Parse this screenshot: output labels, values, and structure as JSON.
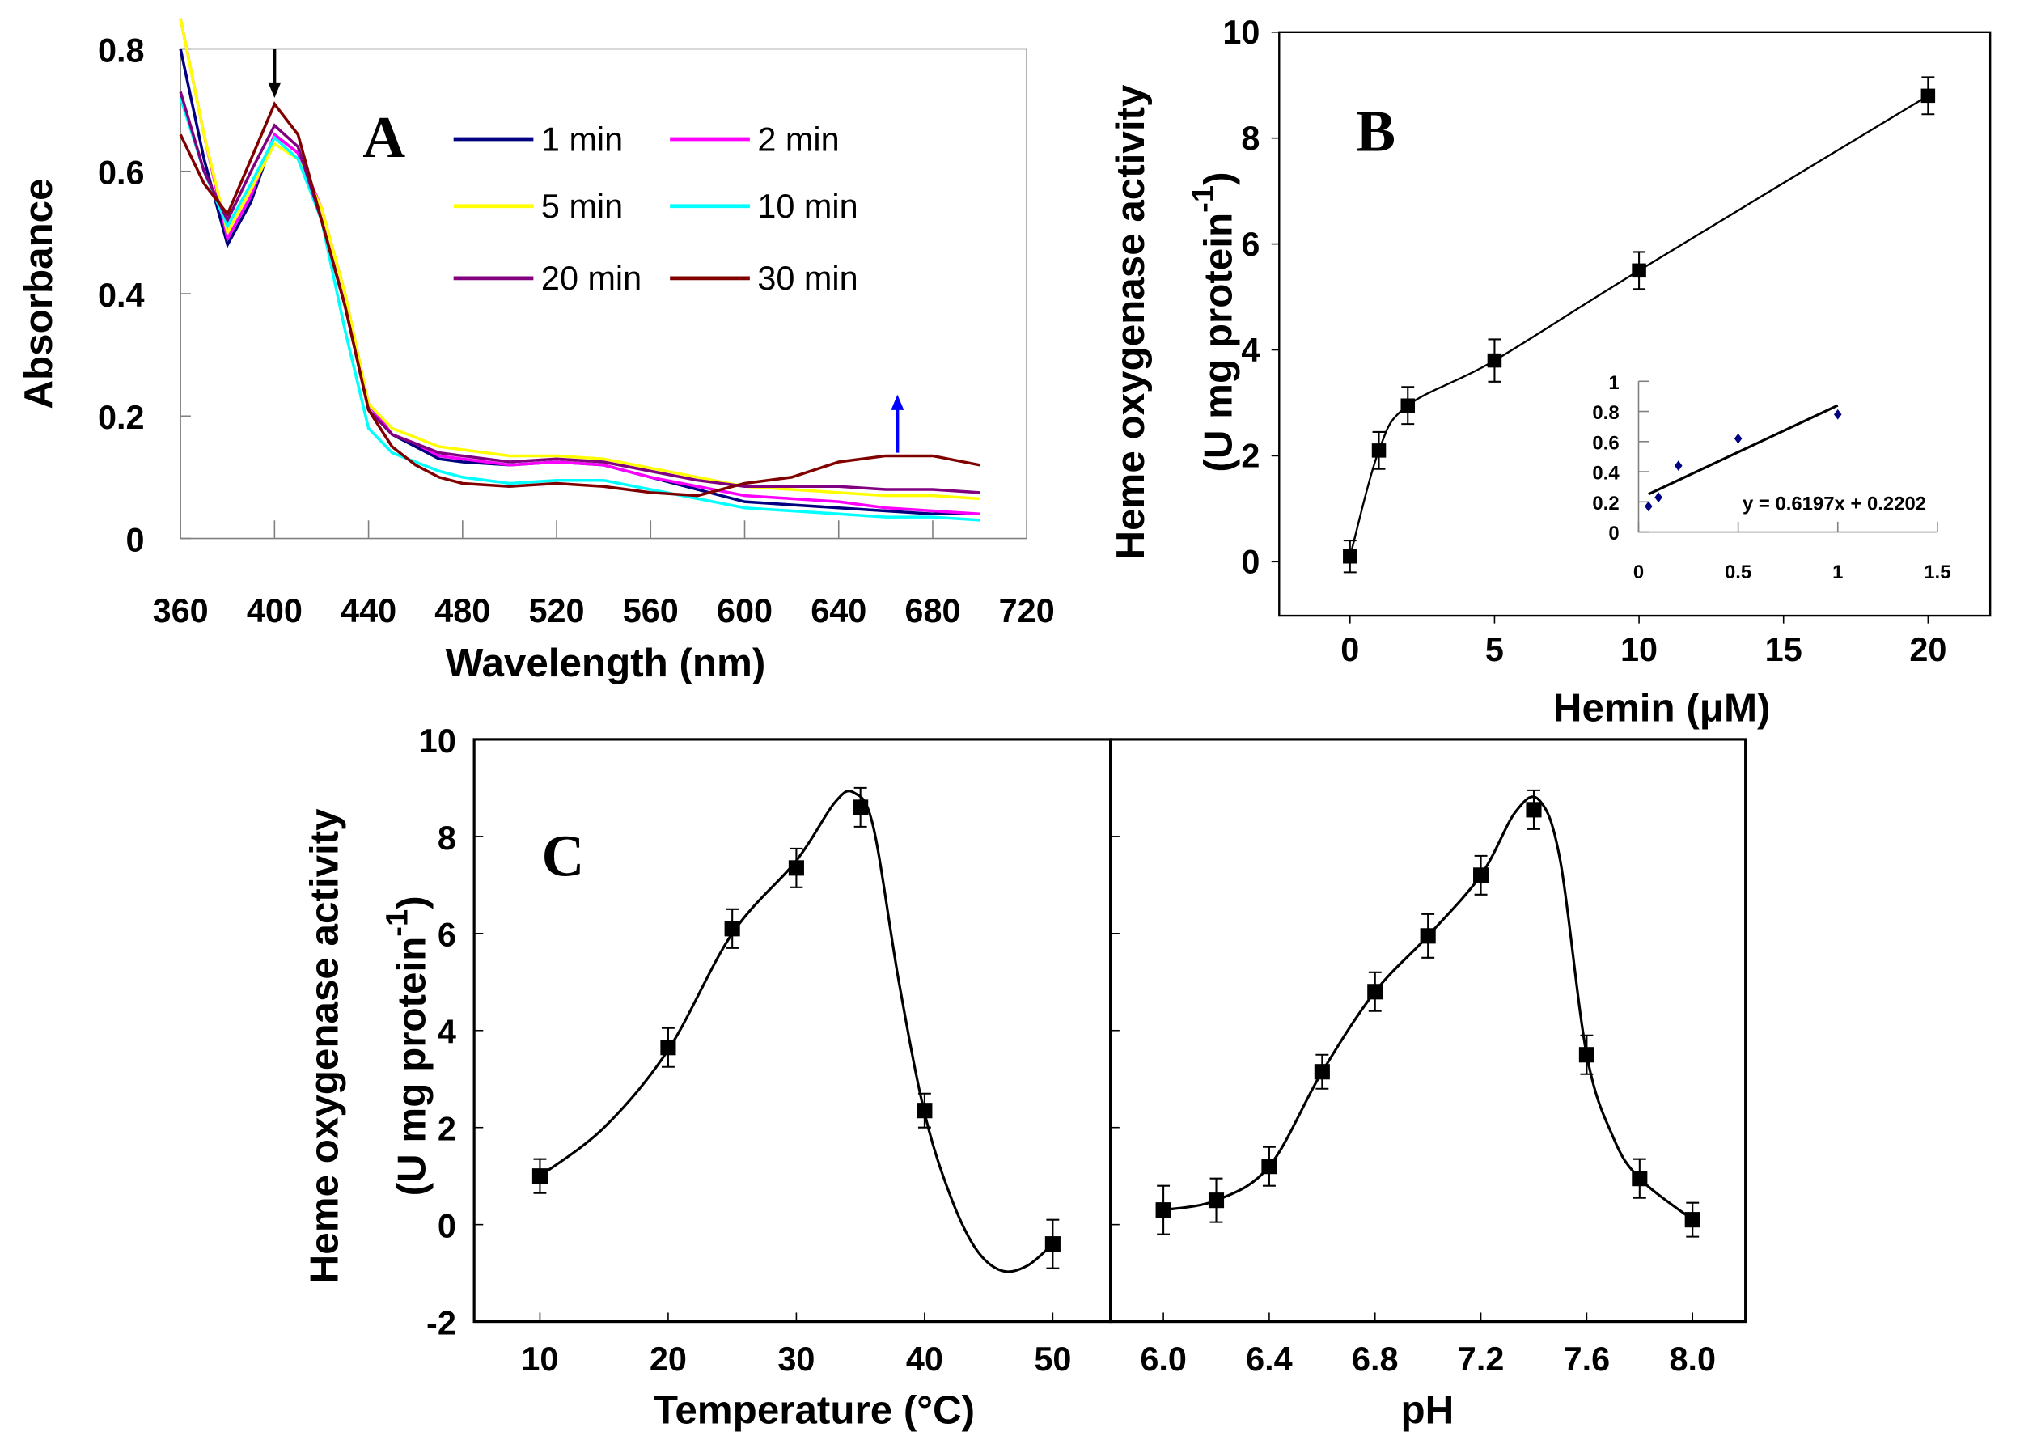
{
  "chart_data": [
    {
      "panel": "A",
      "type": "line",
      "letter": "A",
      "xlabel": "Wavelength (nm)",
      "ylabel": "Absorbance",
      "xlim": [
        360,
        720
      ],
      "ylim": [
        0,
        0.8
      ],
      "xticks": [
        "360",
        "400",
        "440",
        "480",
        "520",
        "560",
        "600",
        "640",
        "680",
        "720"
      ],
      "yticks": [
        "0",
        "0.2",
        "0.4",
        "0.6",
        "0.8"
      ],
      "x": [
        360,
        370,
        380,
        390,
        400,
        410,
        420,
        430,
        440,
        450,
        460,
        470,
        480,
        500,
        520,
        540,
        560,
        580,
        600,
        620,
        640,
        660,
        680,
        700
      ],
      "series": [
        {
          "name": "1 min",
          "color": "#000080",
          "values": [
            0.8,
            0.62,
            0.48,
            0.55,
            0.66,
            0.63,
            0.52,
            0.38,
            0.22,
            0.17,
            0.15,
            0.13,
            0.125,
            0.12,
            0.125,
            0.12,
            0.1,
            0.08,
            0.06,
            0.055,
            0.05,
            0.045,
            0.04,
            0.04
          ]
        },
        {
          "name": "2 min",
          "color": "#ff00ff",
          "values": [
            0.85,
            0.66,
            0.49,
            0.56,
            0.66,
            0.63,
            0.54,
            0.4,
            0.22,
            0.17,
            0.155,
            0.135,
            0.13,
            0.12,
            0.125,
            0.12,
            0.1,
            0.085,
            0.07,
            0.065,
            0.06,
            0.05,
            0.045,
            0.04
          ]
        },
        {
          "name": "5 min",
          "color": "#ffff00",
          "values": [
            0.85,
            0.66,
            0.5,
            0.57,
            0.645,
            0.62,
            0.54,
            0.4,
            0.22,
            0.18,
            0.165,
            0.15,
            0.145,
            0.135,
            0.135,
            0.13,
            0.115,
            0.1,
            0.085,
            0.08,
            0.075,
            0.07,
            0.07,
            0.065
          ]
        },
        {
          "name": "10 min",
          "color": "#00ffff",
          "values": [
            0.72,
            0.6,
            0.51,
            0.58,
            0.655,
            0.62,
            0.52,
            0.34,
            0.18,
            0.14,
            0.125,
            0.11,
            0.1,
            0.09,
            0.095,
            0.095,
            0.08,
            0.065,
            0.05,
            0.045,
            0.04,
            0.035,
            0.035,
            0.03
          ]
        },
        {
          "name": "20 min",
          "color": "#800080",
          "values": [
            0.73,
            0.6,
            0.52,
            0.6,
            0.675,
            0.64,
            0.52,
            0.38,
            0.21,
            0.17,
            0.155,
            0.14,
            0.135,
            0.125,
            0.13,
            0.125,
            0.11,
            0.095,
            0.085,
            0.085,
            0.085,
            0.08,
            0.08,
            0.075
          ]
        },
        {
          "name": "30 min",
          "color": "#800000",
          "values": [
            0.66,
            0.58,
            0.53,
            0.62,
            0.71,
            0.66,
            0.52,
            0.38,
            0.21,
            0.15,
            0.12,
            0.1,
            0.09,
            0.085,
            0.09,
            0.085,
            0.075,
            0.07,
            0.09,
            0.1,
            0.125,
            0.135,
            0.135,
            0.12
          ]
        }
      ],
      "annotations": [
        {
          "type": "arrow-down",
          "color": "#000000",
          "x": 400,
          "from": 0.8,
          "to": 0.72
        },
        {
          "type": "arrow-up",
          "color": "#0000ff",
          "x": 665,
          "from": 0.14,
          "to": 0.235
        }
      ]
    },
    {
      "panel": "B",
      "type": "line",
      "letter": "B",
      "xlabel": "Hemin (μM)",
      "ylabel": [
        "Heme oxygenase activity",
        "(U mg protein",
        "-1",
        ")"
      ],
      "xlim": [
        -2.45,
        22.15
      ],
      "ylim": [
        -1.02,
        10
      ],
      "xticks": [
        "0",
        "5",
        "10",
        "15",
        "20"
      ],
      "yticks": [
        "0",
        "2",
        "4",
        "6",
        "8",
        "10"
      ],
      "points": [
        {
          "x": 0,
          "y": 0.1,
          "err": 0.3
        },
        {
          "x": 1,
          "y": 2.1,
          "err": 0.35
        },
        {
          "x": 2,
          "y": 2.95,
          "err": 0.35
        },
        {
          "x": 5,
          "y": 3.8,
          "err": 0.4
        },
        {
          "x": 10,
          "y": 5.5,
          "err": 0.35
        },
        {
          "x": 20,
          "y": 8.8,
          "err": 0.35
        }
      ],
      "inset": {
        "type": "scatter",
        "xlim": [
          0,
          1.5
        ],
        "ylim": [
          0,
          1
        ],
        "xticks": [
          "0",
          "0.5",
          "1",
          "1.5"
        ],
        "yticks": [
          "0",
          "0.2",
          "0.4",
          "0.6",
          "0.8",
          "1"
        ],
        "points": [
          {
            "x": 0.05,
            "y": 0.17
          },
          {
            "x": 0.1,
            "y": 0.23
          },
          {
            "x": 0.2,
            "y": 0.44
          },
          {
            "x": 0.5,
            "y": 0.62
          },
          {
            "x": 1,
            "y": 0.78
          }
        ],
        "point_color": "#000080",
        "fit": {
          "slope": 0.6197,
          "intercept": 0.2202,
          "range": [
            0.05,
            1
          ]
        },
        "equation": "y = 0.6197x + 0.2202"
      }
    },
    {
      "panel": "C-temperature",
      "type": "line",
      "letter": "C",
      "xlabel": "Temperature (°C)",
      "ylabel": [
        "Heme oxygenase activity",
        "(U mg protein",
        "-1",
        ")"
      ],
      "xlim": [
        4.87,
        54.5
      ],
      "ylim": [
        -2,
        10
      ],
      "xticks": [
        "10",
        "20",
        "30",
        "40",
        "50"
      ],
      "yticks": [
        "-2",
        "0",
        "2",
        "4",
        "6",
        "8",
        "10"
      ],
      "points": [
        {
          "x": 10,
          "y": 1.0,
          "err": 0.35
        },
        {
          "x": 20,
          "y": 3.65,
          "err": 0.4
        },
        {
          "x": 25,
          "y": 6.1,
          "err": 0.4
        },
        {
          "x": 30,
          "y": 7.35,
          "err": 0.4
        },
        {
          "x": 35,
          "y": 8.6,
          "err": 0.4
        },
        {
          "x": 40,
          "y": 2.35,
          "err": 0.35
        },
        {
          "x": 50,
          "y": -0.4,
          "err": 0.5
        }
      ],
      "curve": [
        [
          10,
          1.0
        ],
        [
          15,
          2.0
        ],
        [
          20,
          3.6
        ],
        [
          25,
          6.0
        ],
        [
          30,
          7.5
        ],
        [
          33,
          8.7
        ],
        [
          34.5,
          8.9
        ],
        [
          36,
          8.2
        ],
        [
          38,
          5.0
        ],
        [
          40,
          2.3
        ],
        [
          42,
          0.6
        ],
        [
          44,
          -0.5
        ],
        [
          46,
          -0.95
        ],
        [
          48,
          -0.85
        ],
        [
          50,
          -0.4
        ]
      ]
    },
    {
      "panel": "C-pH",
      "type": "line",
      "xlabel": "pH",
      "xlim": [
        5.8,
        8.2
      ],
      "ylim": [
        -2,
        10
      ],
      "xticks": [
        "6.0",
        "6.4",
        "6.8",
        "7.2",
        "7.6",
        "8.0"
      ],
      "points": [
        {
          "x": 6.0,
          "y": 0.3,
          "err": 0.5
        },
        {
          "x": 6.2,
          "y": 0.5,
          "err": 0.45
        },
        {
          "x": 6.4,
          "y": 1.2,
          "err": 0.4
        },
        {
          "x": 6.6,
          "y": 3.15,
          "err": 0.35
        },
        {
          "x": 6.8,
          "y": 4.8,
          "err": 0.4
        },
        {
          "x": 7.0,
          "y": 5.95,
          "err": 0.45
        },
        {
          "x": 7.2,
          "y": 7.2,
          "err": 0.4
        },
        {
          "x": 7.4,
          "y": 8.55,
          "err": 0.4
        },
        {
          "x": 7.6,
          "y": 3.5,
          "err": 0.4
        },
        {
          "x": 7.8,
          "y": 0.95,
          "err": 0.4
        },
        {
          "x": 8.0,
          "y": 0.1,
          "err": 0.35
        }
      ],
      "curve": [
        [
          6.0,
          0.3
        ],
        [
          6.2,
          0.5
        ],
        [
          6.4,
          1.2
        ],
        [
          6.6,
          3.15
        ],
        [
          6.8,
          4.8
        ],
        [
          7.0,
          5.95
        ],
        [
          7.2,
          7.2
        ],
        [
          7.33,
          8.5
        ],
        [
          7.42,
          8.75
        ],
        [
          7.5,
          7.5
        ],
        [
          7.6,
          3.5
        ],
        [
          7.7,
          1.8
        ],
        [
          7.8,
          0.95
        ],
        [
          8.0,
          0.1
        ]
      ]
    }
  ]
}
